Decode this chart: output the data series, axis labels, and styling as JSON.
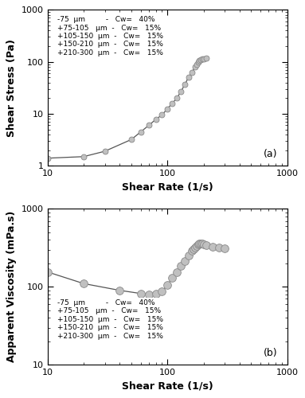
{
  "plot_a": {
    "shear_rate": [
      10,
      20,
      30,
      50,
      60,
      70,
      80,
      90,
      100,
      110,
      120,
      130,
      140,
      150,
      160,
      170,
      175,
      180,
      185,
      190,
      195,
      200,
      210
    ],
    "shear_stress": [
      1.4,
      1.5,
      1.9,
      3.2,
      4.5,
      6.0,
      7.8,
      9.5,
      12.5,
      16.0,
      20.0,
      27.0,
      37.0,
      50.0,
      62.0,
      80.0,
      90.0,
      98.0,
      105.0,
      110.0,
      113.0,
      115.0,
      118.0
    ],
    "ylabel": "Shear Stress (Pa)",
    "xlabel": "Shear Rate (1/s)",
    "ylim": [
      1,
      1000
    ],
    "xlim": [
      10,
      1000
    ],
    "label": "(a)"
  },
  "plot_b": {
    "shear_rate": [
      10,
      20,
      40,
      60,
      70,
      80,
      90,
      100,
      110,
      120,
      130,
      140,
      150,
      160,
      165,
      170,
      175,
      180,
      185,
      190,
      195,
      200,
      210,
      240,
      270,
      300
    ],
    "viscosity": [
      155,
      110,
      90,
      82,
      80,
      82,
      88,
      105,
      130,
      155,
      185,
      215,
      250,
      290,
      305,
      320,
      335,
      348,
      355,
      360,
      358,
      352,
      340,
      325,
      315,
      310
    ],
    "ylabel": "Apparent Viscosity (mPa.s)",
    "xlabel": "Shear Rate (1/s)",
    "ylim": [
      10,
      1000
    ],
    "xlim": [
      10,
      1000
    ],
    "label": "(b)"
  },
  "legend_lines": [
    "-75  μm         -   Cw=   40%",
    "+75-105   μm  -   Cw=   15%",
    "+105-150  μm  -   Cw=   15%",
    "+150-210  μm  -   Cw=   15%",
    "+210-300  μm  -   Cw=   15%"
  ],
  "marker_color": "#c0c0c0",
  "marker_edge_color": "#888888",
  "line_color": "#555555",
  "background_color": "#ffffff",
  "marker_size_a": 5,
  "marker_size_b": 7,
  "tick_fontsize": 8,
  "axis_label_fontsize": 9,
  "legend_fontsize": 6.5
}
